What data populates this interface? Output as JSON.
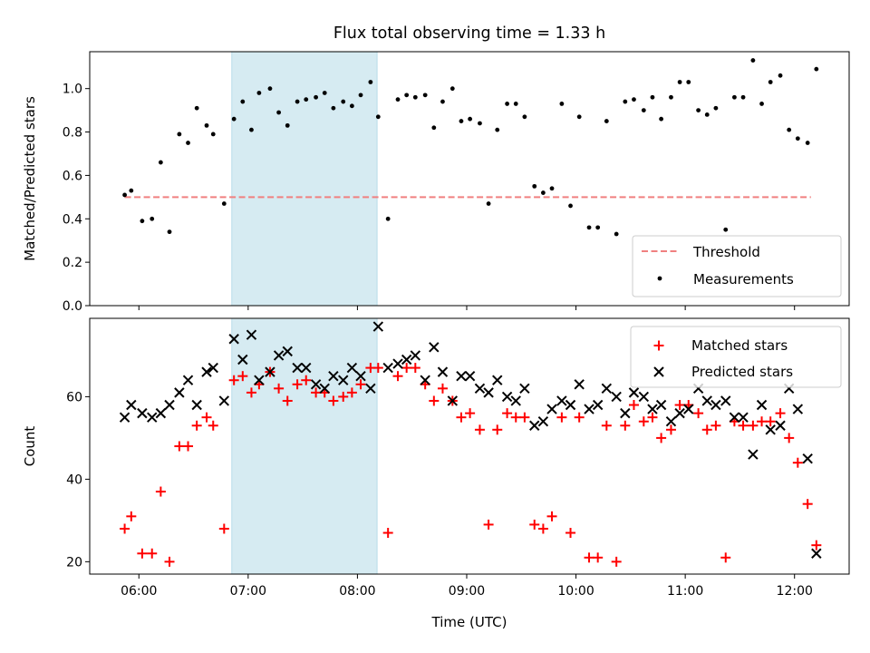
{
  "title": "Flux total observing time = 1.33 h",
  "chart_data": [
    {
      "type": "scatter",
      "ylabel": "Matched/Predicted stars",
      "xlim": [
        5.55,
        12.5
      ],
      "ylim": [
        0,
        1.17
      ],
      "ytick_labels": [
        "0.0",
        "0.2",
        "0.4",
        "0.6",
        "0.8",
        "1.0"
      ],
      "ytick_values": [
        0,
        0.2,
        0.4,
        0.6,
        0.8,
        1.0
      ],
      "highlight_span": [
        6.85,
        8.18
      ],
      "legend_position": "lower-right",
      "threshold": {
        "name": "Threshold",
        "value": 0.5,
        "x_range": [
          5.87,
          12.15
        ],
        "color": "#f08080"
      },
      "series": [
        {
          "name": "Measurements",
          "color": "#000000",
          "x": [
            5.87,
            5.93,
            6.03,
            6.12,
            6.2,
            6.28,
            6.37,
            6.45,
            6.53,
            6.62,
            6.68,
            6.78,
            6.87,
            6.95,
            7.03,
            7.1,
            7.2,
            7.28,
            7.36,
            7.45,
            7.53,
            7.62,
            7.7,
            7.78,
            7.87,
            7.95,
            8.03,
            8.12,
            8.19,
            8.28,
            8.37,
            8.45,
            8.53,
            8.62,
            8.7,
            8.78,
            8.87,
            8.95,
            9.03,
            9.12,
            9.2,
            9.28,
            9.37,
            9.45,
            9.53,
            9.62,
            9.7,
            9.78,
            9.87,
            9.95,
            10.03,
            10.12,
            10.2,
            10.28,
            10.37,
            10.45,
            10.53,
            10.62,
            10.7,
            10.78,
            10.87,
            10.95,
            11.03,
            11.12,
            11.2,
            11.28,
            11.37,
            11.45,
            11.53,
            11.62,
            11.7,
            11.78,
            11.87,
            11.95,
            12.03,
            12.12,
            12.2
          ],
          "y": [
            0.51,
            0.53,
            0.39,
            0.4,
            0.66,
            0.34,
            0.79,
            0.75,
            0.91,
            0.83,
            0.79,
            0.47,
            0.86,
            0.94,
            0.81,
            0.98,
            1.0,
            0.89,
            0.83,
            0.94,
            0.95,
            0.96,
            0.98,
            0.91,
            0.94,
            0.92,
            0.97,
            1.03,
            0.87,
            0.4,
            0.95,
            0.97,
            0.96,
            0.97,
            0.82,
            0.94,
            1.0,
            0.85,
            0.86,
            0.84,
            0.47,
            0.81,
            0.93,
            0.93,
            0.87,
            0.55,
            0.52,
            0.54,
            0.93,
            0.46,
            0.87,
            0.36,
            0.36,
            0.85,
            0.33,
            0.94,
            0.95,
            0.9,
            0.96,
            0.86,
            0.96,
            1.03,
            1.03,
            0.9,
            0.88,
            0.91,
            0.35,
            0.96,
            0.96,
            1.13,
            0.93,
            1.03,
            1.06,
            0.81,
            0.77,
            0.75,
            1.09
          ]
        }
      ]
    },
    {
      "type": "scatter",
      "xlabel": "Time (UTC)",
      "ylabel": "Count",
      "xlim": [
        5.55,
        12.5
      ],
      "ylim": [
        17,
        79
      ],
      "ytick_labels": [
        "20",
        "40",
        "60"
      ],
      "ytick_values": [
        20,
        40,
        60
      ],
      "xtick_labels": [
        "06:00",
        "07:00",
        "08:00",
        "09:00",
        "10:00",
        "11:00",
        "12:00"
      ],
      "xtick_values": [
        6,
        7,
        8,
        9,
        10,
        11,
        12
      ],
      "highlight_span": [
        6.85,
        8.18
      ],
      "legend_position": "upper-right",
      "series": [
        {
          "name": "Matched stars",
          "marker": "plus",
          "color": "#ff0000",
          "x": [
            5.87,
            5.93,
            6.03,
            6.12,
            6.2,
            6.28,
            6.37,
            6.45,
            6.53,
            6.62,
            6.68,
            6.78,
            6.87,
            6.95,
            7.03,
            7.1,
            7.2,
            7.28,
            7.36,
            7.45,
            7.53,
            7.62,
            7.7,
            7.78,
            7.87,
            7.95,
            8.03,
            8.12,
            8.19,
            8.28,
            8.37,
            8.45,
            8.53,
            8.62,
            8.7,
            8.78,
            8.87,
            8.95,
            9.03,
            9.12,
            9.2,
            9.28,
            9.37,
            9.45,
            9.53,
            9.62,
            9.7,
            9.78,
            9.87,
            9.95,
            10.03,
            10.12,
            10.2,
            10.28,
            10.37,
            10.45,
            10.53,
            10.62,
            10.7,
            10.78,
            10.87,
            10.95,
            11.03,
            11.12,
            11.2,
            11.28,
            11.37,
            11.45,
            11.53,
            11.62,
            11.7,
            11.78,
            11.87,
            11.95,
            12.03,
            12.12,
            12.2
          ],
          "y": [
            28,
            31,
            22,
            22,
            37,
            20,
            48,
            48,
            53,
            55,
            53,
            28,
            64,
            65,
            61,
            63,
            66,
            62,
            59,
            63,
            64,
            61,
            61,
            59,
            60,
            61,
            63,
            67,
            67,
            27,
            65,
            67,
            67,
            63,
            59,
            62,
            59,
            55,
            56,
            52,
            29,
            52,
            56,
            55,
            55,
            29,
            28,
            31,
            55,
            27,
            55,
            21,
            21,
            53,
            20,
            53,
            58,
            54,
            55,
            50,
            52,
            58,
            58,
            56,
            52,
            53,
            21,
            54,
            53,
            53,
            54,
            54,
            56,
            50,
            44,
            34,
            24
          ]
        },
        {
          "name": "Predicted stars",
          "marker": "x",
          "color": "#000000",
          "x": [
            5.87,
            5.93,
            6.03,
            6.12,
            6.2,
            6.28,
            6.37,
            6.45,
            6.53,
            6.62,
            6.68,
            6.78,
            6.87,
            6.95,
            7.03,
            7.1,
            7.2,
            7.28,
            7.36,
            7.45,
            7.53,
            7.62,
            7.7,
            7.78,
            7.87,
            7.95,
            8.03,
            8.12,
            8.19,
            8.28,
            8.37,
            8.45,
            8.53,
            8.62,
            8.7,
            8.78,
            8.87,
            8.95,
            9.03,
            9.12,
            9.2,
            9.28,
            9.37,
            9.45,
            9.53,
            9.62,
            9.7,
            9.78,
            9.87,
            9.95,
            10.03,
            10.12,
            10.2,
            10.28,
            10.37,
            10.45,
            10.53,
            10.62,
            10.7,
            10.78,
            10.87,
            10.95,
            11.03,
            11.12,
            11.2,
            11.28,
            11.37,
            11.45,
            11.53,
            11.62,
            11.7,
            11.78,
            11.87,
            11.95,
            12.03,
            12.12,
            12.2
          ],
          "y": [
            55,
            58,
            56,
            55,
            56,
            58,
            61,
            64,
            58,
            66,
            67,
            59,
            74,
            69,
            75,
            64,
            66,
            70,
            71,
            67,
            67,
            63,
            62,
            65,
            64,
            67,
            65,
            62,
            77,
            67,
            68,
            69,
            70,
            64,
            72,
            66,
            59,
            65,
            65,
            62,
            61,
            64,
            60,
            59,
            62,
            53,
            54,
            57,
            59,
            58,
            63,
            57,
            58,
            62,
            60,
            56,
            61,
            60,
            57,
            58,
            54,
            56,
            57,
            62,
            59,
            58,
            59,
            55,
            55,
            46,
            58,
            52,
            53,
            62,
            57,
            45,
            22
          ]
        }
      ]
    }
  ]
}
